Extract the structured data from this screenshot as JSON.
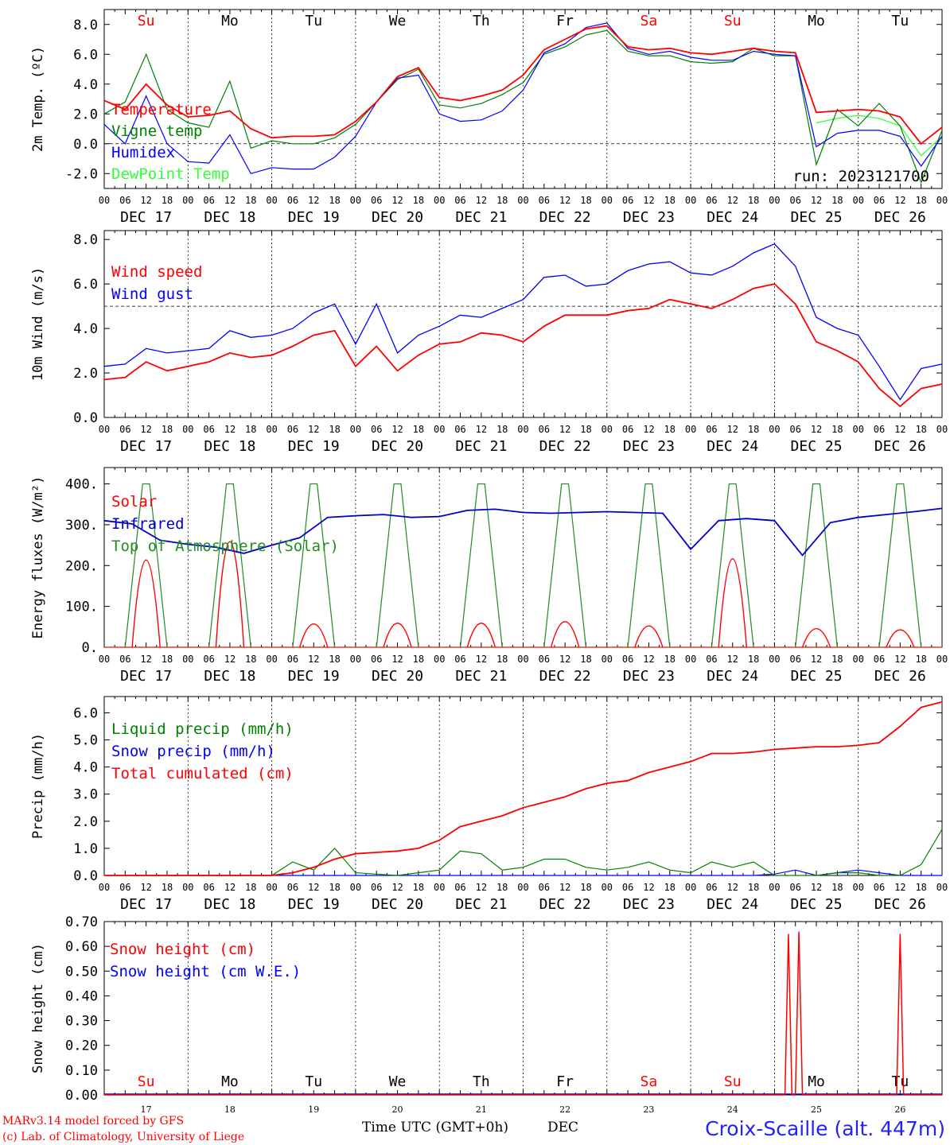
{
  "chart_data": [
    {
      "type": "line",
      "ylabel": "2m Temp. (ºC)",
      "ylim": [
        -3.0,
        9.0
      ],
      "yticks": [
        "-2.0",
        "0.0",
        "2.0",
        "4.0",
        "6.0",
        "8.0"
      ],
      "run_label": "run: 2023121700",
      "x_hours": [
        0,
        6,
        12,
        18,
        24,
        30,
        36,
        42,
        48,
        54,
        60,
        66,
        72,
        78,
        84,
        90,
        96,
        102,
        108,
        114,
        120,
        126,
        132,
        138,
        144,
        150,
        156,
        162,
        168,
        174,
        180,
        186,
        192,
        198,
        204,
        210,
        216,
        222,
        228,
        234,
        240
      ],
      "series": [
        {
          "name": "Temperature",
          "color": "#ff0000",
          "values": [
            2.9,
            2.3,
            4.0,
            2.6,
            1.8,
            1.9,
            2.2,
            1.0,
            0.4,
            0.5,
            0.5,
            0.6,
            1.5,
            2.8,
            4.5,
            5.1,
            3.1,
            2.9,
            3.2,
            3.6,
            4.6,
            6.3,
            7.0,
            7.7,
            7.9,
            6.5,
            6.3,
            6.4,
            6.1,
            6.0,
            6.2,
            6.4,
            6.2,
            6.1,
            2.1,
            2.2,
            2.3,
            2.2,
            1.8,
            0.0,
            1.1
          ]
        },
        {
          "name": "Vigne temp",
          "color": "#008000",
          "values": [
            2.0,
            2.8,
            6.0,
            2.3,
            1.4,
            1.1,
            4.2,
            -0.3,
            0.2,
            0.0,
            0.0,
            0.4,
            1.3,
            2.8,
            4.3,
            5.0,
            2.6,
            2.4,
            2.7,
            3.3,
            4.1,
            6.0,
            6.5,
            7.3,
            7.6,
            6.2,
            5.9,
            5.9,
            5.5,
            5.4,
            5.5,
            6.4,
            5.9,
            5.9,
            -1.4,
            2.3,
            1.2,
            2.7,
            1.2,
            -2.6,
            0.9
          ]
        },
        {
          "name": "Humidex",
          "color": "#0000ff",
          "values": [
            1.3,
            0.0,
            3.2,
            0.0,
            -1.2,
            -1.3,
            0.6,
            -2.0,
            -1.6,
            -1.7,
            -1.7,
            -0.9,
            0.5,
            2.8,
            4.4,
            4.6,
            2.0,
            1.5,
            1.6,
            2.2,
            3.6,
            6.1,
            6.7,
            7.8,
            8.1,
            6.4,
            6.0,
            6.2,
            5.8,
            5.6,
            5.6,
            6.2,
            6.0,
            5.9,
            -0.2,
            0.7,
            0.9,
            0.9,
            0.5,
            -1.5,
            0.5
          ]
        },
        {
          "name": "DewPoint Temp",
          "color": "#33ff33",
          "values": [
            null,
            null,
            null,
            null,
            null,
            null,
            null,
            null,
            null,
            null,
            null,
            null,
            null,
            null,
            null,
            null,
            null,
            null,
            null,
            null,
            null,
            null,
            null,
            null,
            null,
            null,
            null,
            null,
            null,
            null,
            null,
            null,
            null,
            null,
            1.4,
            1.7,
            1.9,
            1.7,
            1.2,
            -0.8,
            0.5
          ]
        }
      ]
    },
    {
      "type": "line",
      "ylabel": "10m Wind (m/s)",
      "ylim": [
        0.0,
        8.4
      ],
      "yticks": [
        "0.0",
        "2.0",
        "4.0",
        "6.0",
        "8.0"
      ],
      "x_hours": [
        0,
        6,
        12,
        18,
        24,
        30,
        36,
        42,
        48,
        54,
        60,
        66,
        72,
        78,
        84,
        90,
        96,
        102,
        108,
        114,
        120,
        126,
        132,
        138,
        144,
        150,
        156,
        162,
        168,
        174,
        180,
        186,
        192,
        198,
        204,
        210,
        216,
        222,
        228,
        234,
        240
      ],
      "series": [
        {
          "name": "Wind speed",
          "color": "#ff0000",
          "values": [
            1.7,
            1.8,
            2.5,
            2.1,
            2.3,
            2.5,
            2.9,
            2.7,
            2.8,
            3.2,
            3.7,
            3.9,
            2.3,
            3.2,
            2.1,
            2.8,
            3.3,
            3.4,
            3.8,
            3.7,
            3.4,
            4.1,
            4.6,
            4.6,
            4.6,
            4.8,
            4.9,
            5.3,
            5.1,
            4.9,
            5.3,
            5.8,
            6.0,
            5.1,
            3.4,
            3.0,
            2.5,
            1.3,
            0.5,
            1.3,
            1.5
          ]
        },
        {
          "name": "Wind gust",
          "color": "#0000ff",
          "values": [
            2.3,
            2.4,
            3.1,
            2.9,
            3.0,
            3.1,
            3.9,
            3.6,
            3.7,
            4.0,
            4.7,
            5.1,
            3.3,
            5.1,
            2.9,
            3.7,
            4.1,
            4.6,
            4.5,
            4.9,
            5.3,
            6.3,
            6.4,
            5.9,
            6.0,
            6.6,
            6.9,
            7.0,
            6.5,
            6.4,
            6.8,
            7.4,
            7.8,
            6.8,
            4.5,
            4.0,
            3.7,
            2.3,
            0.8,
            2.2,
            2.4
          ]
        }
      ]
    },
    {
      "type": "line",
      "ylabel": "Energy fluxes (W/m²)",
      "ylim": [
        0,
        440
      ],
      "yticks": [
        "0.",
        "100.",
        "200.",
        "300.",
        "400."
      ],
      "day_peaks": {
        "solar": [
          225,
          272,
          60,
          62,
          62,
          66,
          55,
          228,
          48,
          45
        ],
        "top_of_atmosphere": [
          400,
          400,
          400,
          400,
          400,
          400,
          400,
          400,
          400,
          400
        ]
      },
      "series": [
        {
          "name": "Solar",
          "color": "#ff0000"
        },
        {
          "name": "Infrared",
          "color": "#0000cc",
          "values": [
            310,
            302,
            262,
            252,
            245,
            230,
            250,
            268,
            318,
            322,
            325,
            318,
            320,
            335,
            338,
            330,
            328,
            330,
            332,
            330,
            328,
            240,
            310,
            315,
            310,
            225,
            305,
            318,
            325,
            332,
            340
          ]
        },
        {
          "name": "Top of Atmosphere (Solar)",
          "color": "#228b22"
        }
      ]
    },
    {
      "type": "line",
      "ylabel": "Precip (mm/h)",
      "ylim": [
        0.0,
        6.6
      ],
      "yticks": [
        "0.0",
        "1.0",
        "2.0",
        "3.0",
        "4.0",
        "5.0",
        "6.0"
      ],
      "x_hours": [
        0,
        6,
        12,
        18,
        24,
        30,
        36,
        42,
        48,
        54,
        60,
        66,
        72,
        78,
        84,
        90,
        96,
        102,
        108,
        114,
        120,
        126,
        132,
        138,
        144,
        150,
        156,
        162,
        168,
        174,
        180,
        186,
        192,
        198,
        204,
        210,
        216,
        222,
        228,
        234,
        240
      ],
      "series": [
        {
          "name": "Liquid precip (mm/h)",
          "color": "#008000",
          "values": [
            0,
            0,
            0,
            0,
            0,
            0,
            0,
            0,
            0,
            0.5,
            0.2,
            1.0,
            0.1,
            0.05,
            0,
            0.1,
            0.2,
            0.9,
            0.8,
            0.2,
            0.3,
            0.6,
            0.6,
            0.3,
            0.2,
            0.3,
            0.5,
            0.2,
            0.1,
            0.5,
            0.3,
            0.5,
            0.0,
            0,
            0,
            0.1,
            0.1,
            0.0,
            0.0,
            0.4,
            1.7
          ]
        },
        {
          "name": "Snow precip (mm/h)",
          "color": "#0000ff",
          "values": [
            0,
            0,
            0,
            0,
            0,
            0,
            0,
            0,
            0,
            0,
            0,
            0,
            0,
            0,
            0,
            0,
            0,
            0,
            0,
            0,
            0,
            0,
            0,
            0,
            0,
            0,
            0,
            0,
            0,
            0,
            0,
            0,
            0.05,
            0.2,
            0,
            0.1,
            0.2,
            0.1,
            0,
            0,
            0
          ]
        },
        {
          "name": "Total cumulated (cm)",
          "color": "#ff0000",
          "values": [
            0,
            0,
            0,
            0,
            0,
            0,
            0,
            0,
            0,
            0.1,
            0.3,
            0.6,
            0.8,
            0.85,
            0.9,
            1.0,
            1.3,
            1.8,
            2.0,
            2.2,
            2.5,
            2.7,
            2.9,
            3.2,
            3.4,
            3.5,
            3.8,
            4.0,
            4.2,
            4.5,
            4.5,
            4.55,
            4.65,
            4.7,
            4.75,
            4.75,
            4.8,
            4.9,
            5.5,
            6.2,
            6.4
          ]
        }
      ]
    },
    {
      "type": "line",
      "ylabel": "Snow height (cm)",
      "ylim": [
        0.0,
        0.7
      ],
      "yticks": [
        "0.00",
        "0.10",
        "0.20",
        "0.30",
        "0.40",
        "0.50",
        "0.60",
        "0.70"
      ],
      "spikes": [
        {
          "hour": 196,
          "value": 0.65
        },
        {
          "hour": 199,
          "value": 0.66
        },
        {
          "hour": 228,
          "value": 0.65
        }
      ],
      "series": [
        {
          "name": "Snow height (cm)",
          "color": "#ff0000"
        },
        {
          "name": "Snow height (cm W.E.)",
          "color": "#0000ff"
        }
      ]
    }
  ],
  "axis": {
    "hour_ticks": [
      "00",
      "06",
      "12",
      "18"
    ],
    "final_tick": "00",
    "dates": [
      "DEC 17",
      "DEC 18",
      "DEC 19",
      "DEC 20",
      "DEC 21",
      "DEC 22",
      "DEC 23",
      "DEC 24",
      "DEC 25",
      "DEC 26"
    ],
    "weekdays": [
      "Su",
      "Mo",
      "Tu",
      "We",
      "Th",
      "Fr",
      "Sa",
      "Su",
      "Mo",
      "Tu"
    ],
    "weekday_red": [
      true,
      false,
      false,
      false,
      false,
      false,
      true,
      true,
      false,
      false
    ],
    "day_numbers": [
      "17",
      "18",
      "19",
      "20",
      "21",
      "22",
      "23",
      "24",
      "25",
      "26"
    ]
  },
  "footer": {
    "credit_line1": "MARv3.14 model forced by GFS",
    "credit_line2": "(c) Lab. of Climatology, University of Liege",
    "time_label": "Time UTC (GMT+0h)",
    "month_label": "DEC",
    "station": "Croix-Scaille (alt. 447m)"
  }
}
